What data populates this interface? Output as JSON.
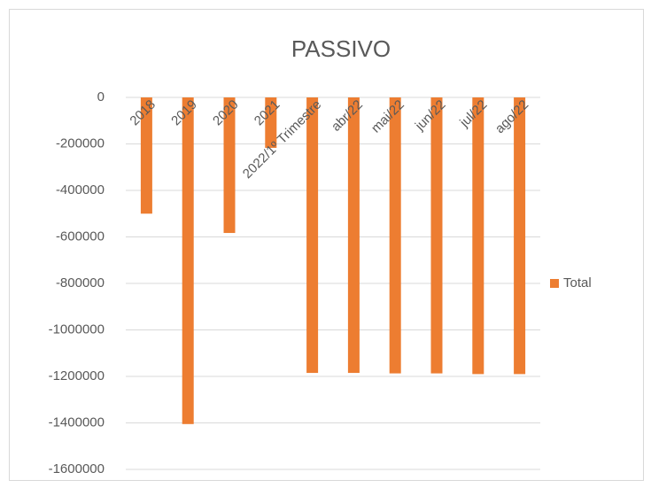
{
  "chart_data": {
    "type": "bar",
    "title": "PASSIVO",
    "categories": [
      "2018",
      "2019",
      "2020",
      "2021",
      "2022/1º Trimestre",
      "abr/22",
      "mai/22",
      "jun/22",
      "jul/22",
      "ago/22"
    ],
    "series": [
      {
        "name": "Total",
        "color": "#ed7d31",
        "values": [
          -500000,
          -1405000,
          -583000,
          -217000,
          -1185000,
          -1185000,
          -1187000,
          -1187000,
          -1190000,
          -1190000
        ]
      }
    ],
    "ylim": [
      -1600000,
      0
    ],
    "yticks": [
      0,
      -200000,
      -400000,
      -600000,
      -800000,
      -1000000,
      -1200000,
      -1400000,
      -1600000
    ],
    "grid": true,
    "legend": "right"
  }
}
